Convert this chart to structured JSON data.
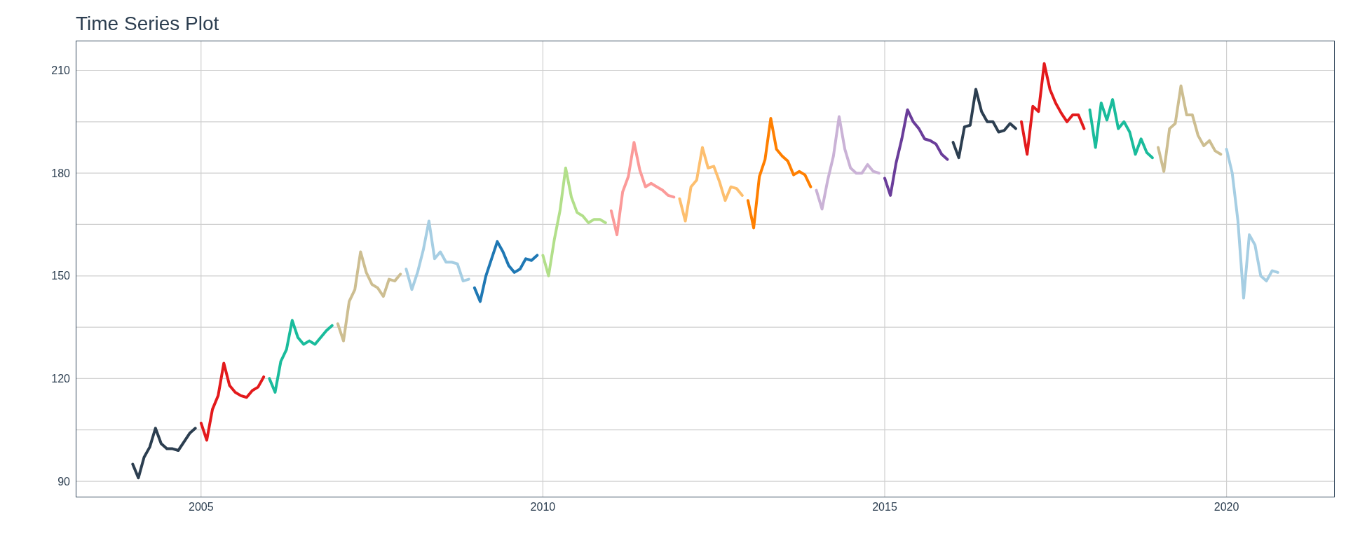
{
  "chart_data": {
    "type": "line",
    "title": "Time Series Plot",
    "xlim": [
      "2003-03",
      "2021-08"
    ],
    "xticks": [
      "2005",
      "2010",
      "2015",
      "2020"
    ],
    "ylim": [
      85.3,
      218.7
    ],
    "yticks": [
      90,
      {
        "value": 105,
        "label": null
      },
      120,
      {
        "value": 135,
        "label": null
      },
      150,
      {
        "value": 165,
        "label": null
      },
      180,
      {
        "value": 195,
        "label": null
      },
      210
    ],
    "grid": true,
    "marker": "none",
    "line_style": "solid",
    "series": [
      {
        "color": "#2c3e50",
        "x": [
          "2004-01",
          "2004-02",
          "2004-03",
          "2004-04",
          "2004-05",
          "2004-06",
          "2004-07",
          "2004-08",
          "2004-09",
          "2004-10",
          "2004-11",
          "2004-12"
        ],
        "values": [
          95,
          91,
          97,
          100,
          105.5,
          101,
          99.5,
          99.5,
          99,
          101.5,
          104,
          105.5
        ]
      },
      {
        "color": "#e31a1c",
        "x": [
          "2005-01",
          "2005-02",
          "2005-03",
          "2005-04",
          "2005-05",
          "2005-06",
          "2005-07",
          "2005-08",
          "2005-09",
          "2005-10",
          "2005-11",
          "2005-12"
        ],
        "values": [
          107,
          102,
          111,
          115,
          124.5,
          118,
          116,
          115,
          114.5,
          116.5,
          117.5,
          120.5
        ]
      },
      {
        "color": "#1abc9c",
        "x": [
          "2006-01",
          "2006-02",
          "2006-03",
          "2006-04",
          "2006-05",
          "2006-06",
          "2006-07",
          "2006-08",
          "2006-09",
          "2006-10",
          "2006-11",
          "2006-12"
        ],
        "values": [
          120,
          116,
          125,
          128.5,
          137,
          132,
          130,
          131,
          130,
          132,
          134,
          135.5
        ]
      },
      {
        "color": "#cdbe91",
        "x": [
          "2007-01",
          "2007-02",
          "2007-03",
          "2007-04",
          "2007-05",
          "2007-06",
          "2007-07",
          "2007-08",
          "2007-09",
          "2007-10",
          "2007-11",
          "2007-12"
        ],
        "values": [
          136,
          131,
          142.5,
          146,
          157,
          151,
          147.5,
          146.5,
          144,
          149,
          148.5,
          150.5
        ]
      },
      {
        "color": "#a6cee3",
        "x": [
          "2008-01",
          "2008-02",
          "2008-03",
          "2008-04",
          "2008-05",
          "2008-06",
          "2008-07",
          "2008-08",
          "2008-09",
          "2008-10",
          "2008-11",
          "2008-12"
        ],
        "values": [
          152,
          146,
          151,
          157.5,
          166,
          155,
          157,
          154,
          154,
          153.5,
          148.5,
          149
        ]
      },
      {
        "color": "#1f78b4",
        "x": [
          "2009-01",
          "2009-02",
          "2009-03",
          "2009-04",
          "2009-05",
          "2009-06",
          "2009-07",
          "2009-08",
          "2009-09",
          "2009-10",
          "2009-11",
          "2009-12"
        ],
        "values": [
          146.5,
          142.5,
          150,
          155,
          160,
          157,
          153,
          151,
          152,
          155,
          154.5,
          156
        ]
      },
      {
        "color": "#b2df8a",
        "x": [
          "2010-01",
          "2010-02",
          "2010-03",
          "2010-04",
          "2010-05",
          "2010-06",
          "2010-07",
          "2010-08",
          "2010-09",
          "2010-10",
          "2010-11",
          "2010-12"
        ],
        "values": [
          156,
          150,
          160.5,
          169,
          181.5,
          173,
          168.5,
          167.5,
          165.5,
          166.5,
          166.5,
          165.5
        ]
      },
      {
        "color": "#fb9a99",
        "x": [
          "2011-01",
          "2011-02",
          "2011-03",
          "2011-04",
          "2011-05",
          "2011-06",
          "2011-07",
          "2011-08",
          "2011-09",
          "2011-10",
          "2011-11",
          "2011-12"
        ],
        "values": [
          169,
          162,
          174.5,
          179,
          189,
          181,
          176,
          177,
          176,
          175,
          173.5,
          173
        ]
      },
      {
        "color": "#fdbf6f",
        "x": [
          "2012-01",
          "2012-02",
          "2012-03",
          "2012-04",
          "2012-05",
          "2012-06",
          "2012-07",
          "2012-08",
          "2012-09",
          "2012-10",
          "2012-11",
          "2012-12"
        ],
        "values": [
          172.5,
          166,
          176,
          178,
          187.5,
          181.5,
          182,
          177.5,
          172,
          176,
          175.5,
          173.5
        ]
      },
      {
        "color": "#ff7f00",
        "x": [
          "2013-01",
          "2013-02",
          "2013-03",
          "2013-04",
          "2013-05",
          "2013-06",
          "2013-07",
          "2013-08",
          "2013-09",
          "2013-10",
          "2013-11",
          "2013-12"
        ],
        "values": [
          172,
          164,
          179,
          184,
          196,
          187,
          185,
          183.5,
          179.5,
          180.5,
          179.5,
          176
        ]
      },
      {
        "color": "#cab2d6",
        "x": [
          "2014-01",
          "2014-02",
          "2014-03",
          "2014-04",
          "2014-05",
          "2014-06",
          "2014-07",
          "2014-08",
          "2014-09",
          "2014-10",
          "2014-11",
          "2014-12"
        ],
        "values": [
          175,
          169.5,
          178,
          185,
          196.5,
          187,
          181.5,
          180,
          180,
          182.5,
          180.5,
          180
        ]
      },
      {
        "color": "#6a3d9a",
        "x": [
          "2015-01",
          "2015-02",
          "2015-03",
          "2015-04",
          "2015-05",
          "2015-06",
          "2015-07",
          "2015-08",
          "2015-09",
          "2015-10",
          "2015-11",
          "2015-12"
        ],
        "values": [
          178.5,
          173.5,
          183,
          190,
          198.5,
          195,
          193,
          190,
          189.5,
          188.5,
          185.5,
          184
        ]
      },
      {
        "color": "#2c3e50",
        "x": [
          "2016-01",
          "2016-02",
          "2016-03",
          "2016-04",
          "2016-05",
          "2016-06",
          "2016-07",
          "2016-08",
          "2016-09",
          "2016-10",
          "2016-11",
          "2016-12"
        ],
        "values": [
          189,
          184.5,
          193.5,
          194,
          204.5,
          198,
          195,
          195,
          192,
          192.5,
          194.5,
          193
        ]
      },
      {
        "color": "#e31a1c",
        "x": [
          "2017-01",
          "2017-02",
          "2017-03",
          "2017-04",
          "2017-05",
          "2017-06",
          "2017-07",
          "2017-08",
          "2017-09",
          "2017-10",
          "2017-11",
          "2017-12"
        ],
        "values": [
          195,
          185.5,
          199.5,
          198,
          212,
          204.5,
          200.5,
          197.5,
          195,
          197,
          197,
          193
        ]
      },
      {
        "color": "#1abc9c",
        "x": [
          "2018-01",
          "2018-02",
          "2018-03",
          "2018-04",
          "2018-05",
          "2018-06",
          "2018-07",
          "2018-08",
          "2018-09",
          "2018-10",
          "2018-11",
          "2018-12"
        ],
        "values": [
          198.5,
          187.5,
          200.5,
          195.5,
          201.5,
          193,
          195,
          192,
          185.5,
          190,
          186,
          184.5
        ]
      },
      {
        "color": "#cdbe91",
        "x": [
          "2019-01",
          "2019-02",
          "2019-03",
          "2019-04",
          "2019-05",
          "2019-06",
          "2019-07",
          "2019-08",
          "2019-09",
          "2019-10",
          "2019-11",
          "2019-12"
        ],
        "values": [
          187.5,
          180.5,
          193,
          194.5,
          205.5,
          197,
          197,
          191,
          188,
          189.5,
          186.5,
          185.5
        ]
      },
      {
        "color": "#a6cee3",
        "x": [
          "2020-01",
          "2020-02",
          "2020-03",
          "2020-04",
          "2020-05",
          "2020-06",
          "2020-07",
          "2020-08",
          "2020-09",
          "2020-10"
        ],
        "values": [
          187,
          180,
          166,
          143.5,
          162,
          159,
          150,
          148.5,
          151.5,
          151
        ]
      }
    ]
  }
}
